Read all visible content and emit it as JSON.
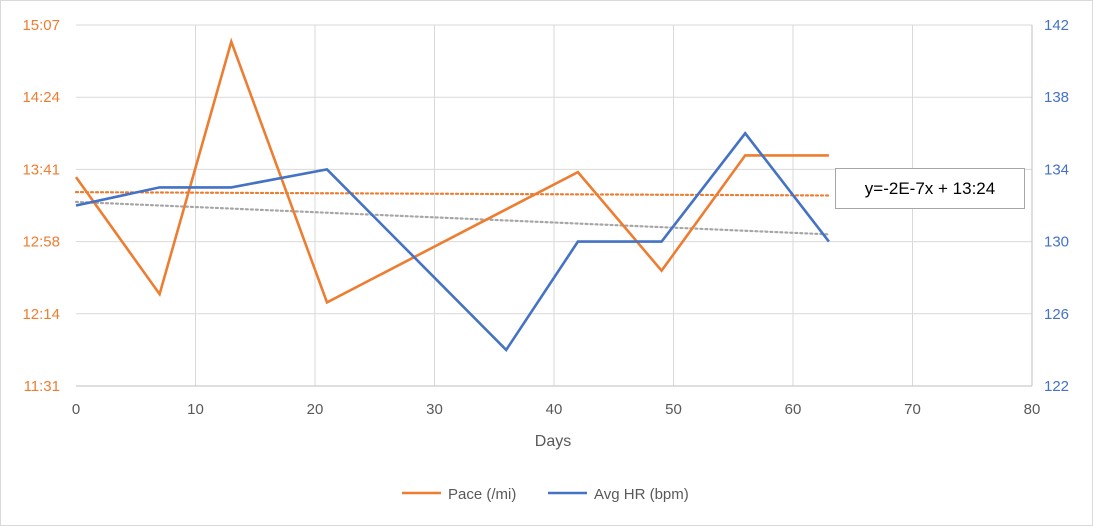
{
  "chart_data": {
    "type": "line",
    "xlabel": "Days",
    "xlim": [
      0,
      80
    ],
    "x_ticks": [
      "0",
      "10",
      "20",
      "30",
      "40",
      "50",
      "60",
      "70",
      "80"
    ],
    "y_left": {
      "ticks": [
        "11:31",
        "12:14",
        "12:58",
        "13:41",
        "14:24",
        "15:07"
      ],
      "range_minutes": [
        "11:31",
        "15:07"
      ],
      "color": "#ed7d31"
    },
    "y_right": {
      "ticks": [
        "122",
        "126",
        "130",
        "134",
        "138",
        "142"
      ],
      "range": [
        122,
        142
      ],
      "color": "#4472c4"
    },
    "grid": true,
    "legend_position": "bottom",
    "series": [
      {
        "name": "Pace (/mi)",
        "axis": "left",
        "color": "#ed7d31",
        "x": [
          0,
          7,
          13,
          21,
          42,
          49,
          56,
          63
        ],
        "y": [
          "13:36",
          "12:26",
          "14:57",
          "12:21",
          "13:39",
          "12:40",
          "13:49",
          "13:49"
        ]
      },
      {
        "name": "Avg HR (bpm)",
        "axis": "right",
        "color": "#4472c4",
        "x": [
          0,
          7,
          13,
          21,
          36,
          42,
          49,
          56,
          63
        ],
        "y": [
          132,
          133,
          133,
          134,
          124,
          130,
          130,
          136,
          130
        ]
      }
    ],
    "trendlines": [
      {
        "series": "Pace (/mi)",
        "color": "#ed7d31",
        "style": "dotted",
        "x": [
          0,
          63
        ],
        "y": [
          "13:27",
          "13:25"
        ]
      },
      {
        "series": "Avg HR (bpm)",
        "color": "#a6a6a6",
        "style": "dotted",
        "x": [
          0,
          63
        ],
        "y": [
          132.2,
          130.4
        ]
      }
    ],
    "annotations": [
      {
        "text": "y=-2E-7x + 13:24"
      }
    ]
  }
}
